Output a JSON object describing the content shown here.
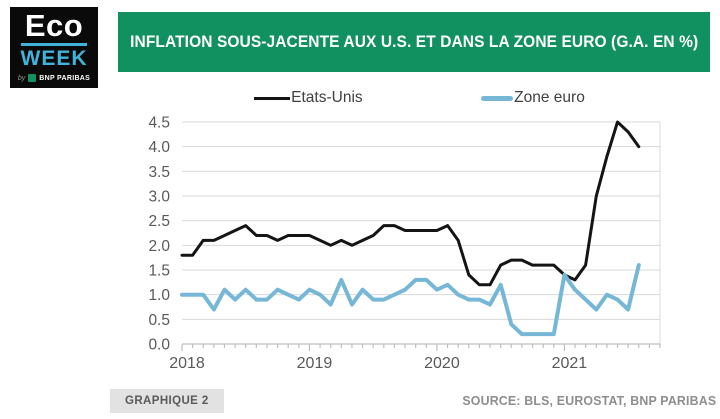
{
  "logo": {
    "line1": "Eco",
    "line2": "WEEK",
    "byline_by": "by",
    "byline_brand": "BNP PARIBAS"
  },
  "banner": {
    "title": "INFLATION SOUS-JACENTE AUX U.S. ET DANS LA ZONE EURO (G.A. EN %)"
  },
  "legend": [
    {
      "label": "Etats-Unis",
      "color": "#141414"
    },
    {
      "label": "Zone euro",
      "color": "#76b7d7"
    }
  ],
  "chart_data": {
    "type": "line",
    "title": "INFLATION SOUS-JACENTE AUX U.S. ET DANS LA ZONE EURO (G.A. EN %)",
    "x_unit": "month",
    "x_start": "2018-01",
    "x_end": "2021-08",
    "x_tick_labels": [
      "2018",
      "2019",
      "2020",
      "2021"
    ],
    "ylim": [
      0,
      4.5
    ],
    "y_ticks": [
      0.0,
      0.5,
      1.0,
      1.5,
      2.0,
      2.5,
      3.0,
      3.5,
      4.0,
      4.5
    ],
    "grid": "horizontal",
    "legend_position": "top",
    "series": [
      {
        "name": "Etats-Unis",
        "color": "#141414",
        "width": 3,
        "values": [
          1.8,
          1.8,
          2.1,
          2.1,
          2.2,
          2.3,
          2.4,
          2.2,
          2.2,
          2.1,
          2.2,
          2.2,
          2.2,
          2.1,
          2.0,
          2.1,
          2.0,
          2.1,
          2.2,
          2.4,
          2.4,
          2.3,
          2.3,
          2.3,
          2.3,
          2.4,
          2.1,
          1.4,
          1.2,
          1.2,
          1.6,
          1.7,
          1.7,
          1.6,
          1.6,
          1.6,
          1.4,
          1.3,
          1.6,
          3.0,
          3.8,
          4.5,
          4.3,
          4.0
        ]
      },
      {
        "name": "Zone euro",
        "color": "#76b7d7",
        "width": 4,
        "values": [
          1.0,
          1.0,
          1.0,
          0.7,
          1.1,
          0.9,
          1.1,
          0.9,
          0.9,
          1.1,
          1.0,
          0.9,
          1.1,
          1.0,
          0.8,
          1.3,
          0.8,
          1.1,
          0.9,
          0.9,
          1.0,
          1.1,
          1.3,
          1.3,
          1.1,
          1.2,
          1.0,
          0.9,
          0.9,
          0.8,
          1.2,
          0.4,
          0.2,
          0.2,
          0.2,
          0.2,
          1.4,
          1.1,
          0.9,
          0.7,
          1.0,
          0.9,
          0.7,
          1.6
        ]
      }
    ]
  },
  "footer": {
    "figure_label": "GRAPHIQUE 2",
    "source": "SOURCE: BLS, EUROSTAT, BNP PARIBAS"
  },
  "colors": {
    "banner_green": "#129160",
    "logo_cyan": "#41b3da",
    "us_line": "#141414",
    "euro_line": "#76b7d7",
    "gridline": "#d9d9d9",
    "axis": "#bfbfbf",
    "tick_label": "#595959"
  }
}
